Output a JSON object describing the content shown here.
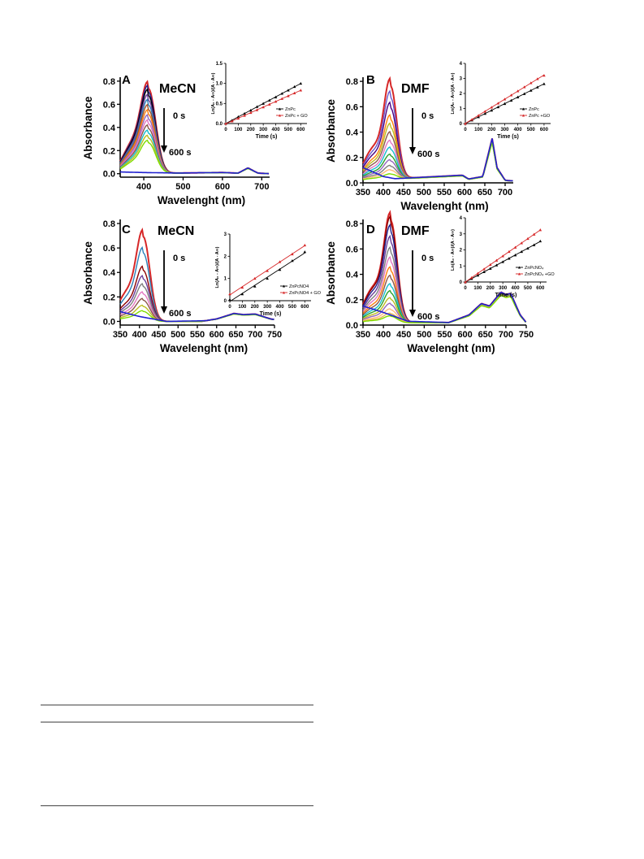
{
  "chart_data": [
    {
      "type": "line",
      "panel_letter": "A",
      "solvent": "MeCN",
      "ylabel": "Absorbance",
      "xlabel": "Wavelenght (nm)",
      "xlim": [
        340,
        720
      ],
      "ylim": [
        -0.03,
        0.82
      ],
      "xticks": [
        "400",
        "500",
        "600",
        "700"
      ],
      "yticks": [
        "0.0",
        "0.2",
        "0.4",
        "0.6",
        "0.8"
      ],
      "arrow_top": "0 s",
      "arrow_bottom": "600 s",
      "colors": [
        "#d62728",
        "#1f1f8f",
        "#000000",
        "#6a3d9a",
        "#2c7fb8",
        "#a0522d",
        "#ff7f0e",
        "#9467bd",
        "#e377c2",
        "#8c564b",
        "#17becf",
        "#bcbd22",
        "#7fdd00"
      ],
      "series": {
        "soret_peak": 412,
        "soret_width": 26,
        "soret_heights": [
          0.72,
          0.69,
          0.66,
          0.62,
          0.58,
          0.54,
          0.5,
          0.46,
          0.42,
          0.38,
          0.34,
          0.3,
          0.26
        ],
        "q_band": [
          [
            340,
            0.0
          ],
          [
            600,
            0.01
          ],
          [
            640,
            0.005
          ],
          [
            665,
            0.05
          ],
          [
            690,
            0.005
          ],
          [
            720,
            0.0
          ]
        ],
        "final_curve": [
          [
            340,
            0.015
          ],
          [
            400,
            0.01
          ],
          [
            500,
            0.005
          ],
          [
            720,
            0.0
          ]
        ]
      },
      "inset": {
        "xlabel": "Time (s)",
        "ylabel": "Ln(A₀ - A∞)/(A - A∞)",
        "xlim": [
          0,
          650
        ],
        "ylim": [
          0,
          1.5
        ],
        "xticks": [
          0,
          100,
          200,
          300,
          400,
          500,
          600
        ],
        "yticks": [
          "0.0",
          "0.5",
          "1.0",
          "1.5"
        ],
        "series": [
          {
            "name": "ZnPc",
            "color": "#000000",
            "marker": "triangle",
            "x": [
              0,
              50,
              100,
              150,
              200,
              250,
              300,
              350,
              400,
              450,
              500,
              550,
              600
            ],
            "y": [
              0.0,
              0.08,
              0.17,
              0.25,
              0.33,
              0.42,
              0.5,
              0.58,
              0.66,
              0.75,
              0.83,
              0.92,
              1.0
            ]
          },
          {
            "name": "ZnPc + GO",
            "color": "#d62728",
            "marker": "triangle",
            "x": [
              0,
              50,
              100,
              150,
              200,
              250,
              300,
              350,
              400,
              450,
              500,
              550,
              600
            ],
            "y": [
              0.0,
              0.06,
              0.13,
              0.2,
              0.27,
              0.34,
              0.41,
              0.48,
              0.55,
              0.62,
              0.69,
              0.76,
              0.83
            ]
          }
        ]
      }
    },
    {
      "type": "line",
      "panel_letter": "B",
      "solvent": "DMF",
      "ylabel": "Absorbance",
      "xlabel": "Wavelenght (nm)",
      "xlim": [
        350,
        720
      ],
      "ylim": [
        0.0,
        0.82
      ],
      "xticks": [
        "350",
        "400",
        "450",
        "500",
        "550",
        "600",
        "650",
        "700"
      ],
      "yticks": [
        "0.0",
        "0.2",
        "0.4",
        "0.6",
        "0.8"
      ],
      "arrow_top": "0 s",
      "arrow_bottom": "600 s",
      "colors": [
        "#d62728",
        "#6a5acd",
        "#4b0082",
        "#ff7f0e",
        "#bcbd22",
        "#8c564b",
        "#e377c2",
        "#17becf",
        "#2ca02c",
        "#9467bd",
        "#7f7f7f",
        "#ffbb78",
        "#7fdd00"
      ],
      "series": {
        "soret_peak": 418,
        "soret_width": 22,
        "soret_heights": [
          0.72,
          0.63,
          0.55,
          0.46,
          0.4,
          0.34,
          0.28,
          0.23,
          0.18,
          0.14,
          0.1,
          0.07,
          0.04
        ],
        "q_band": [
          [
            350,
            0.02
          ],
          [
            595,
            0.06
          ],
          [
            610,
            0.03
          ],
          [
            645,
            0.05
          ],
          [
            668,
            0.35
          ],
          [
            680,
            0.12
          ],
          [
            700,
            0.02
          ],
          [
            720,
            0.015
          ]
        ],
        "final_curve": [
          [
            350,
            0.12
          ],
          [
            400,
            0.05
          ],
          [
            450,
            0.02
          ],
          [
            720,
            0.015
          ]
        ]
      },
      "inset": {
        "xlabel": "Time (s)",
        "ylabel": "Ln(A₀ - A∞)/(A - A∞)",
        "xlim": [
          0,
          650
        ],
        "ylim": [
          0,
          4
        ],
        "xticks": [
          0,
          100,
          200,
          300,
          400,
          500,
          600
        ],
        "yticks": [
          "0",
          "1",
          "2",
          "3",
          "4"
        ],
        "series": [
          {
            "name": "ZnPc",
            "color": "#000000",
            "marker": "triangle",
            "x": [
              0,
              50,
              100,
              150,
              200,
              250,
              300,
              350,
              400,
              450,
              500,
              550,
              600
            ],
            "y": [
              0.0,
              0.22,
              0.44,
              0.66,
              0.88,
              1.1,
              1.32,
              1.54,
              1.76,
              1.98,
              2.2,
              2.42,
              2.64
            ]
          },
          {
            "name": "ZnPc +GO",
            "color": "#d62728",
            "marker": "triangle",
            "x": [
              0,
              50,
              100,
              150,
              200,
              250,
              300,
              350,
              400,
              450,
              500,
              550,
              600
            ],
            "y": [
              0.0,
              0.27,
              0.54,
              0.81,
              1.08,
              1.35,
              1.62,
              1.89,
              2.16,
              2.43,
              2.7,
              2.97,
              3.2
            ]
          }
        ]
      }
    },
    {
      "type": "line",
      "panel_letter": "C",
      "solvent": "MeCN",
      "ylabel": "Absorbance",
      "xlabel": "Wavelenght (nm)",
      "xlim": [
        350,
        750
      ],
      "ylim": [
        -0.03,
        0.82
      ],
      "xticks": [
        "350",
        "400",
        "450",
        "500",
        "550",
        "600",
        "650",
        "700",
        "750"
      ],
      "yticks": [
        "0.0",
        "0.2",
        "0.4",
        "0.6",
        "0.8"
      ],
      "arrow_top": "0 s",
      "arrow_bottom": "600 s",
      "colors": [
        "#d62728",
        "#2c7fb8",
        "#8b0000",
        "#6a3d9a",
        "#7f7f7f",
        "#e377c2",
        "#8c564b",
        "#bcbd22",
        "#7fdd00"
      ],
      "series": {
        "soret_peak": 410,
        "soret_width": 24,
        "soret_heights": [
          0.68,
          0.55,
          0.41,
          0.34,
          0.28,
          0.22,
          0.17,
          0.12,
          0.08
        ],
        "q_band": [
          [
            350,
            0.0
          ],
          [
            460,
            0.0
          ],
          [
            560,
            0.0
          ],
          [
            600,
            0.02
          ],
          [
            645,
            0.065
          ],
          [
            670,
            0.055
          ],
          [
            700,
            0.06
          ],
          [
            740,
            0.02
          ],
          [
            750,
            0.015
          ]
        ],
        "final_curve": [
          [
            350,
            0.08
          ],
          [
            400,
            0.04
          ],
          [
            470,
            0.0
          ],
          [
            750,
            0.015
          ]
        ]
      },
      "inset": {
        "xlabel": "Time (s)",
        "ylabel": "Ln(A₀ - A∞)/(A - A∞)",
        "xlim": [
          0,
          650
        ],
        "ylim": [
          0,
          3
        ],
        "xticks": [
          0,
          100,
          200,
          300,
          400,
          500,
          600
        ],
        "yticks": [
          "0",
          "1",
          "2",
          "3"
        ],
        "series": [
          {
            "name": "ZnPcNO4",
            "color": "#000000",
            "marker": "triangle",
            "x": [
              0,
              100,
              200,
              300,
              400,
              500,
              600
            ],
            "y": [
              0.05,
              0.3,
              0.65,
              1.0,
              1.4,
              1.8,
              2.2
            ]
          },
          {
            "name": "ZnPcNO4 + GO",
            "color": "#d62728",
            "marker": "triangle",
            "x": [
              0,
              100,
              200,
              300,
              400,
              500,
              600
            ],
            "y": [
              0.3,
              0.6,
              1.0,
              1.35,
              1.75,
              2.1,
              2.5
            ]
          }
        ]
      }
    },
    {
      "type": "line",
      "panel_letter": "D",
      "solvent": "DMF",
      "ylabel": "Absorbance",
      "xlabel": "Wavelenght (nm)",
      "xlim": [
        350,
        750
      ],
      "ylim": [
        0.0,
        0.82
      ],
      "xticks": [
        "350",
        "400",
        "450",
        "500",
        "550",
        "600",
        "650",
        "700",
        "750"
      ],
      "yticks": [
        "0.0",
        "0.2",
        "0.4",
        "0.6",
        "0.8"
      ],
      "arrow_top": "0 s",
      "arrow_bottom": "600 s",
      "colors": [
        "#d62728",
        "#8b0000",
        "#1f1f8f",
        "#6a3d9a",
        "#7f7f7f",
        "#e377c2",
        "#ff7f0e",
        "#8c564b",
        "#17becf",
        "#2ca02c",
        "#bcbd22",
        "#9467bd",
        "#ffbb78",
        "#e7ba52",
        "#7fdd00"
      ],
      "series": {
        "soret_peak": 418,
        "soret_width": 22,
        "soret_heights": [
          0.79,
          0.76,
          0.7,
          0.62,
          0.54,
          0.47,
          0.4,
          0.34,
          0.28,
          0.23,
          0.18,
          0.14,
          0.1,
          0.07,
          0.05
        ],
        "q_band": [
          [
            350,
            0.02
          ],
          [
            560,
            0.02
          ],
          [
            610,
            0.08
          ],
          [
            640,
            0.17
          ],
          [
            660,
            0.15
          ],
          [
            688,
            0.26
          ],
          [
            700,
            0.24
          ],
          [
            712,
            0.25
          ],
          [
            735,
            0.08
          ],
          [
            750,
            0.02
          ]
        ],
        "final_curve": [
          [
            350,
            0.15
          ],
          [
            400,
            0.1
          ],
          [
            460,
            0.03
          ],
          [
            560,
            0.02
          ]
        ]
      },
      "inset": {
        "xlabel": "Time (s)",
        "ylabel": "Ln(A₀ - A∞)/(A - A∞)",
        "xlim": [
          0,
          650
        ],
        "ylim": [
          0,
          4
        ],
        "xticks": [
          0,
          100,
          200,
          300,
          400,
          500,
          600
        ],
        "yticks": [
          "0",
          "1",
          "2",
          "3",
          "4"
        ],
        "series": [
          {
            "name": "ZnPcNO₄",
            "color": "#000000",
            "marker": "triangle",
            "x": [
              0,
              50,
              100,
              150,
              200,
              250,
              300,
              350,
              400,
              450,
              500,
              550,
              600
            ],
            "y": [
              0.0,
              0.21,
              0.42,
              0.63,
              0.84,
              1.05,
              1.26,
              1.47,
              1.68,
              1.89,
              2.1,
              2.31,
              2.55
            ]
          },
          {
            "name": "ZnPcNO₄ +GO",
            "color": "#d62728",
            "marker": "triangle",
            "x": [
              0,
              50,
              100,
              150,
              200,
              250,
              300,
              350,
              400,
              450,
              500,
              550,
              600
            ],
            "y": [
              0.0,
              0.27,
              0.54,
              0.81,
              1.08,
              1.35,
              1.62,
              1.89,
              2.16,
              2.43,
              2.7,
              2.97,
              3.25
            ]
          }
        ]
      }
    }
  ]
}
